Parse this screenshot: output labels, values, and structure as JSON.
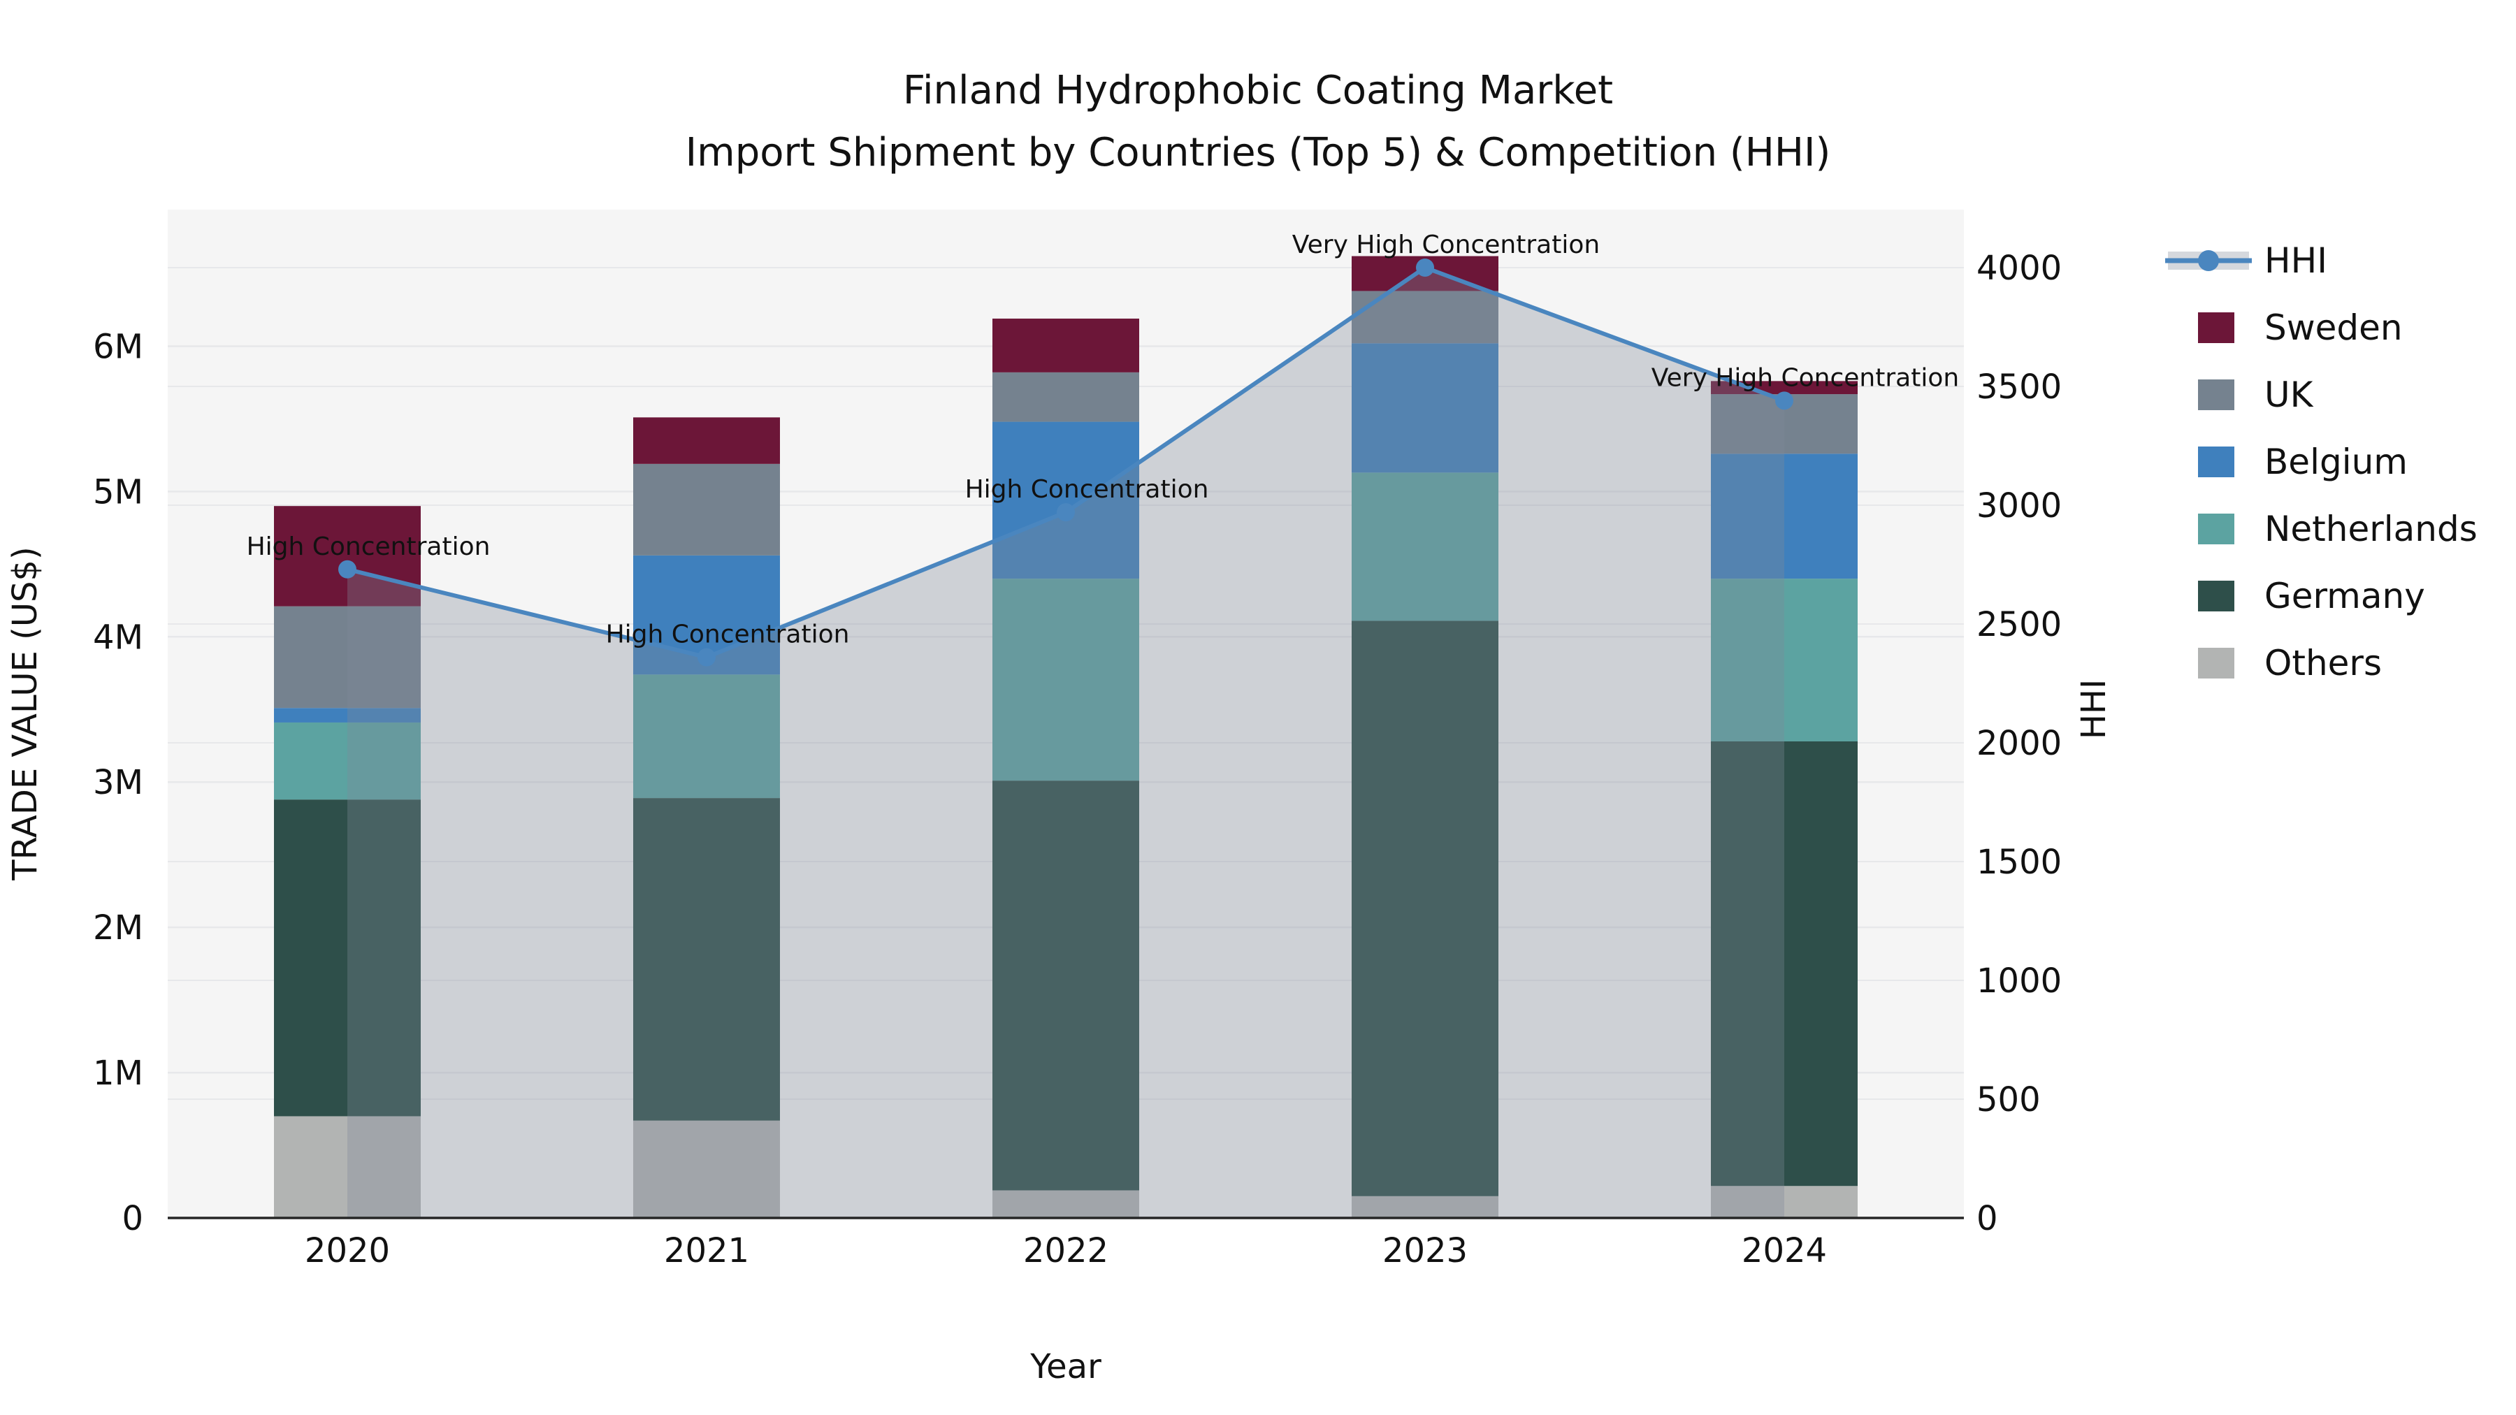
{
  "title": {
    "line1": "Finland Hydrophobic Coating Market",
    "line2": "Import Shipment by Countries (Top 5) & Competition (HHI)"
  },
  "axes": {
    "xlabel": "Year",
    "ylabel_left": "TRADE VALUE (US$)",
    "ylabel_right": "HHI"
  },
  "chart_data": {
    "type": "bar",
    "stacked": true,
    "title": "Finland Hydrophobic Coating Market — Import Shipment by Countries (Top 5) & Competition (HHI)",
    "xlabel": "Year",
    "ylabel": "TRADE VALUE (US$)",
    "ylabel_right": "HHI",
    "categories": [
      "2020",
      "2021",
      "2022",
      "2023",
      "2024"
    ],
    "y_left_tick_labels": [
      "0",
      "1M",
      "2M",
      "3M",
      "4M",
      "5M",
      "6M"
    ],
    "y_left_tick_values": [
      0,
      1,
      2,
      3,
      4,
      5,
      6
    ],
    "ylim_left": [
      0,
      6.94
    ],
    "y_right_tick_labels": [
      "0",
      "500",
      "1000",
      "1500",
      "2000",
      "2500",
      "3000",
      "3500",
      "4000"
    ],
    "y_right_tick_values": [
      0,
      500,
      1000,
      1500,
      2000,
      2500,
      3000,
      3500,
      4000
    ],
    "ylim_right": [
      0,
      4244
    ],
    "grid": true,
    "legend_position": "right",
    "series": [
      {
        "name": "Others",
        "color": "#b2b4b3",
        "values": [
          0.7,
          0.67,
          0.19,
          0.15,
          0.22
        ]
      },
      {
        "name": "Germany",
        "color": "#2e4f4a",
        "values": [
          2.18,
          2.22,
          2.82,
          3.96,
          3.06
        ]
      },
      {
        "name": "Netherlands",
        "color": "#5ca3a1",
        "values": [
          0.53,
          0.85,
          1.39,
          1.02,
          1.12
        ]
      },
      {
        "name": "Belgium",
        "color": "#3f80bd",
        "values": [
          0.1,
          0.82,
          1.08,
          0.89,
          0.86
        ]
      },
      {
        "name": "UK",
        "color": "#75828f",
        "values": [
          0.7,
          0.63,
          0.34,
          0.36,
          0.41
        ]
      },
      {
        "name": "Sweden",
        "color": "#6c1638",
        "values": [
          0.69,
          0.32,
          0.37,
          0.24,
          0.09
        ]
      }
    ],
    "line_series": {
      "name": "HHI",
      "color": "#4a86bf",
      "area_fill": "rgba(127,138,153,0.33)",
      "values": [
        2730,
        2360,
        2970,
        4000,
        3440
      ]
    },
    "annotations": [
      {
        "category": "2020",
        "text": "High Concentration"
      },
      {
        "category": "2021",
        "text": "High Concentration"
      },
      {
        "category": "2022",
        "text": "High Concentration"
      },
      {
        "category": "2023",
        "text": "Very High Concentration"
      },
      {
        "category": "2024",
        "text": "Very High Concentration"
      }
    ],
    "legend_items": [
      "HHI",
      "Sweden",
      "UK",
      "Belgium",
      "Netherlands",
      "Germany",
      "Others"
    ],
    "colors": {
      "plot_bg": "#f5f5f5",
      "grid": "#e7e8ea",
      "axis_line": "#262626",
      "text": "#111111"
    }
  }
}
